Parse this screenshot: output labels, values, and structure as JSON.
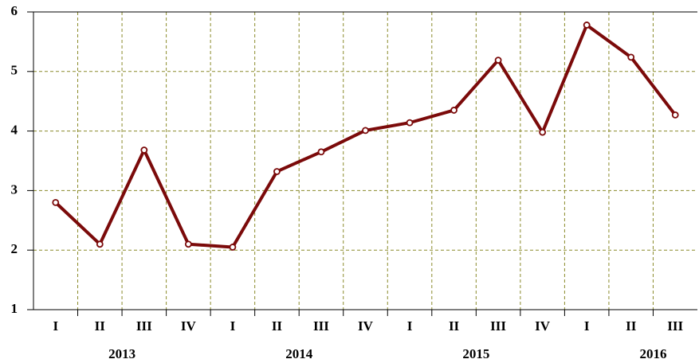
{
  "chart_data": {
    "type": "line",
    "categories": [
      "I",
      "II",
      "III",
      "IV",
      "I",
      "II",
      "III",
      "IV",
      "I",
      "II",
      "III",
      "IV",
      "I",
      "II",
      "III"
    ],
    "years": [
      "2013",
      "2014",
      "2015",
      "2016"
    ],
    "series": [
      {
        "color": "#7b0a0a",
        "values": [
          2.8,
          2.1,
          3.68,
          2.1,
          2.05,
          3.32,
          3.65,
          4.01,
          4.14,
          4.35,
          5.19,
          3.98,
          5.78,
          5.24,
          4.27
        ]
      }
    ],
    "ylim": [
      1,
      6
    ],
    "yticks": [
      1,
      2,
      3,
      4,
      5,
      6
    ],
    "grid": true
  }
}
